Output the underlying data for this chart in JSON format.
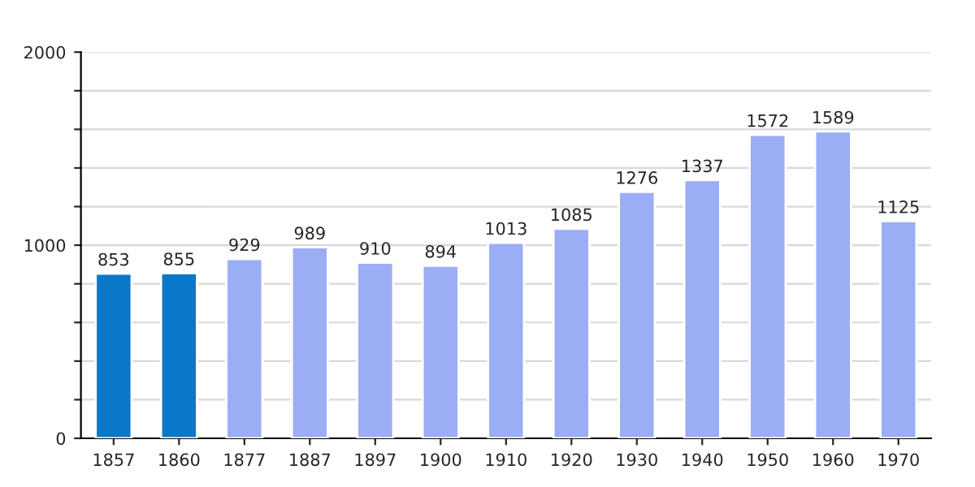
{
  "chart_data": {
    "type": "bar",
    "categories": [
      "1857",
      "1860",
      "1877",
      "1887",
      "1897",
      "1900",
      "1910",
      "1920",
      "1930",
      "1940",
      "1950",
      "1960",
      "1970"
    ],
    "values": [
      853,
      855,
      929,
      989,
      910,
      894,
      1013,
      1085,
      1276,
      1337,
      1572,
      1589,
      1125
    ],
    "colors": [
      "#0a77c9",
      "#0a77c9",
      "#9badf5",
      "#9badf5",
      "#9badf5",
      "#9badf5",
      "#9badf5",
      "#9badf5",
      "#9badf5",
      "#9badf5",
      "#9badf5",
      "#9badf5",
      "#9badf5"
    ],
    "ylim": [
      0,
      2000
    ],
    "yticks": [
      0,
      {
        "value": 200,
        "label": null
      },
      {
        "value": 400,
        "label": null
      },
      {
        "value": 600,
        "label": null
      },
      {
        "value": 800,
        "label": null
      },
      1000,
      {
        "value": 1200,
        "label": null
      },
      {
        "value": 1400,
        "label": null
      },
      {
        "value": 1600,
        "label": null
      },
      {
        "value": 1800,
        "label": null
      },
      2000
    ],
    "grid": "y",
    "data_labels": true
  }
}
